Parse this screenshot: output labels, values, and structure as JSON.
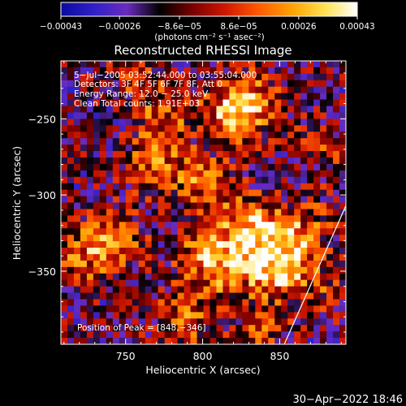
{
  "chart_data": {
    "type": "heatmap",
    "title": "Reconstructed RHESSI Image",
    "xlabel": "Heliocentric X (arcsec)",
    "ylabel": "Heliocentric Y (arcsec)",
    "xlim": [
      708,
      893
    ],
    "ylim": [
      -398,
      -212
    ],
    "x_ticks": [
      750,
      800,
      850
    ],
    "x_tick_labels": [
      "750",
      "800",
      "850"
    ],
    "y_ticks": [
      -250,
      -300,
      -350
    ],
    "y_tick_labels": [
      "−250",
      "−300",
      "−350"
    ],
    "colorbar": {
      "range": [
        -0.00043,
        0.00043
      ],
      "ticks": [
        -0.00043,
        -0.00026,
        -8.6e-05,
        8.6e-05,
        0.00026,
        0.00043
      ],
      "tick_labels": [
        "−0.00043",
        "−0.00026",
        "−8.6e−05",
        "8.6e−05",
        "0.00026",
        "0.00043"
      ],
      "unit_label": "(photons cm⁻² s⁻¹ asec⁻²)",
      "colormap": [
        "#0a0aa0",
        "#3020c8",
        "#6a2cc0",
        "#000000",
        "#7a0000",
        "#d01800",
        "#ff5a00",
        "#ffa000",
        "#ffe050",
        "#ffffff"
      ]
    },
    "annotations": [
      "5−Jul−2005 03:52:44.000 to 03:55:04.000",
      "Detectors: 3F 4F 5F 6F 7F 8F, Att 0",
      "Energy Range: 12.0 − 25.0 keV",
      "Clean    Total counts: 1.91E+03"
    ],
    "peak_label": "Position of Peak = [848,−346]",
    "peak": {
      "x": 848,
      "y": -346
    },
    "sources": [
      {
        "x": 820,
        "y": -247,
        "amp": 0.85
      },
      {
        "x": 832,
        "y": -237,
        "amp": 0.55
      },
      {
        "x": 775,
        "y": -250,
        "amp": 0.55
      },
      {
        "x": 770,
        "y": -280,
        "amp": 0.6
      },
      {
        "x": 800,
        "y": -292,
        "amp": 0.55
      },
      {
        "x": 828,
        "y": -318,
        "amp": 0.7
      },
      {
        "x": 845,
        "y": -335,
        "amp": 0.95
      },
      {
        "x": 848,
        "y": -346,
        "amp": 1.0
      },
      {
        "x": 812,
        "y": -350,
        "amp": 0.65
      },
      {
        "x": 800,
        "y": -335,
        "amp": 0.5
      },
      {
        "x": 744,
        "y": -330,
        "amp": 0.65
      },
      {
        "x": 722,
        "y": -340,
        "amp": 0.55
      },
      {
        "x": 868,
        "y": -320,
        "amp": 0.45
      },
      {
        "x": 880,
        "y": -360,
        "amp": 0.35
      },
      {
        "x": 787,
        "y": -382,
        "amp": 0.6
      },
      {
        "x": 838,
        "y": -385,
        "amp": 0.4
      },
      {
        "x": 760,
        "y": -222,
        "amp": 0.35
      },
      {
        "x": 876,
        "y": -270,
        "amp": 0.3
      }
    ],
    "limb_line": [
      {
        "x": 853,
        "y": -398
      },
      {
        "x": 893,
        "y": -307
      }
    ],
    "grid": false,
    "legend": "none"
  },
  "footer": {
    "timestamp": "30−Apr−2022 18:46"
  },
  "colors": {
    "background": "#000000",
    "text": "#ffffff",
    "axes": "#ffffff"
  }
}
